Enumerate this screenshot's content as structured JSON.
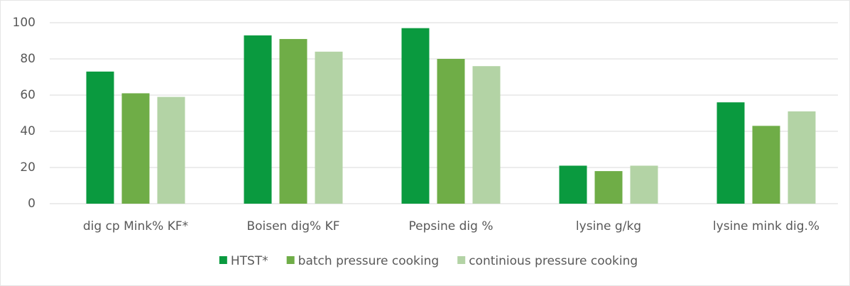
{
  "chart_data": {
    "type": "bar",
    "categories": [
      "dig cp Mink% KF*",
      "Boisen dig% KF",
      "Pepsine dig %",
      "lysine g/kg",
      "lysine mink dig.%"
    ],
    "series": [
      {
        "name": "HTST*",
        "color": "#0a9a3f",
        "values": [
          73,
          93,
          97,
          21,
          56
        ]
      },
      {
        "name": "batch pressure cooking",
        "color": "#6fad47",
        "values": [
          61,
          91,
          80,
          18,
          43
        ]
      },
      {
        "name": "continious pressure cooking",
        "color": "#b3d3a5",
        "values": [
          59,
          84,
          76,
          21,
          51
        ]
      }
    ],
    "ylim": [
      0,
      100
    ],
    "yticks": [
      0,
      20,
      40,
      60,
      80,
      100
    ],
    "grid": true,
    "legend": "bottom"
  }
}
